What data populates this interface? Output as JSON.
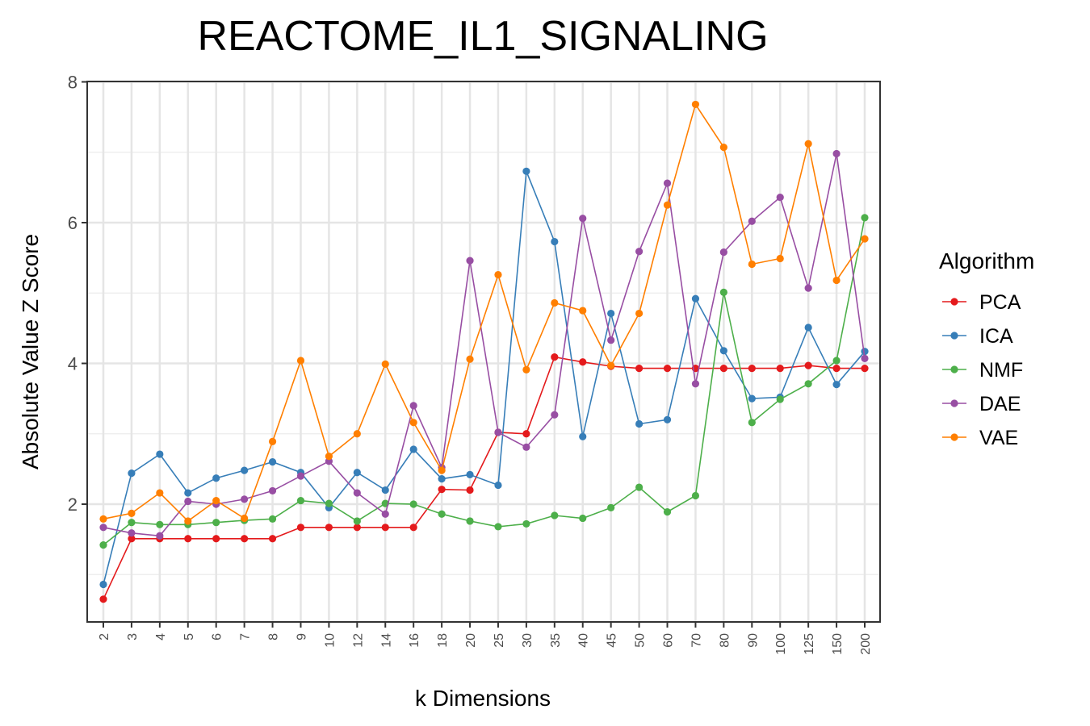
{
  "chart_data": {
    "type": "line",
    "title": "REACTOME_IL1_SIGNALING",
    "xlabel": "k Dimensions",
    "ylabel": "Absolute Value Z Score",
    "categories": [
      "2",
      "3",
      "4",
      "5",
      "6",
      "7",
      "8",
      "9",
      "10",
      "12",
      "14",
      "16",
      "18",
      "20",
      "25",
      "30",
      "35",
      "40",
      "45",
      "50",
      "60",
      "70",
      "80",
      "90",
      "100",
      "125",
      "150",
      "200"
    ],
    "y_ticks": [
      2,
      4,
      6,
      8
    ],
    "ylim": [
      0.3,
      8.0
    ],
    "grid": true,
    "legend": {
      "title": "Algorithm",
      "placement": "right"
    },
    "series": [
      {
        "name": "PCA",
        "color": "#e41a1c",
        "values": [
          0.65,
          1.51,
          1.51,
          1.51,
          1.51,
          1.51,
          1.51,
          1.67,
          1.67,
          1.67,
          1.67,
          1.67,
          2.21,
          2.2,
          3.02,
          3.0,
          4.09,
          4.02,
          3.96,
          3.93,
          3.93,
          3.93,
          3.93,
          3.93,
          3.93,
          3.97,
          3.93,
          3.93
        ]
      },
      {
        "name": "ICA",
        "color": "#377eb8",
        "values": [
          0.86,
          2.44,
          2.71,
          2.16,
          2.37,
          2.48,
          2.6,
          2.45,
          1.95,
          2.45,
          2.2,
          2.78,
          2.36,
          2.42,
          2.27,
          6.73,
          5.73,
          2.96,
          4.71,
          3.14,
          3.2,
          4.92,
          4.18,
          3.5,
          3.52,
          4.51,
          3.7,
          4.17
        ]
      },
      {
        "name": "NMF",
        "color": "#4daf4a",
        "values": [
          1.42,
          1.74,
          1.71,
          1.71,
          1.74,
          1.77,
          1.79,
          2.05,
          2.01,
          1.76,
          2.01,
          2.0,
          1.86,
          1.76,
          1.68,
          1.72,
          1.84,
          1.8,
          1.95,
          2.24,
          1.89,
          2.12,
          5.01,
          3.16,
          3.49,
          3.71,
          4.04,
          6.07
        ]
      },
      {
        "name": "DAE",
        "color": "#984ea3",
        "values": [
          1.67,
          1.59,
          1.55,
          2.04,
          2.0,
          2.07,
          2.19,
          2.4,
          2.61,
          2.16,
          1.86,
          3.4,
          2.52,
          5.46,
          3.02,
          2.81,
          3.27,
          6.06,
          4.33,
          5.59,
          6.56,
          3.71,
          5.58,
          6.02,
          6.36,
          5.07,
          6.98,
          4.07
        ]
      },
      {
        "name": "VAE",
        "color": "#ff7f00",
        "values": [
          1.79,
          1.87,
          2.16,
          1.76,
          2.05,
          1.8,
          2.89,
          4.04,
          2.68,
          3.0,
          3.99,
          3.16,
          2.48,
          4.06,
          5.26,
          3.91,
          4.86,
          4.75,
          3.97,
          4.71,
          6.25,
          7.68,
          7.07,
          5.41,
          5.49,
          7.12,
          5.18,
          5.77
        ]
      }
    ]
  }
}
